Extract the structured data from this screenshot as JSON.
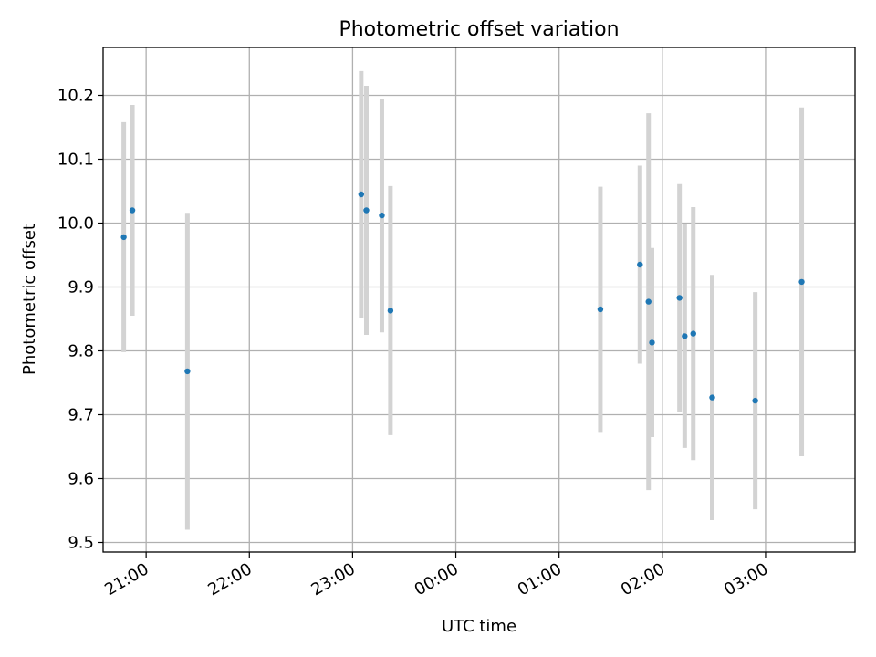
{
  "chart_data": {
    "type": "scatter",
    "title": "Photometric offset variation",
    "xlabel": "UTC time",
    "ylabel": "Photometric offset",
    "grid": true,
    "x_tick_labels": [
      "21:00",
      "22:00",
      "23:00",
      "00:00",
      "01:00",
      "02:00",
      "03:00"
    ],
    "y_tick_labels": [
      "9.5",
      "9.6",
      "9.7",
      "9.8",
      "9.9",
      "10.0",
      "10.1",
      "10.2"
    ],
    "x_range": [
      "20:35",
      "03:52"
    ],
    "ylim": [
      9.485,
      10.275
    ],
    "colors": {
      "points": "#1f77b4",
      "errorbars": "#d3d3d3",
      "grid": "#b0b0b0"
    },
    "points": [
      {
        "x": "20:47",
        "y": 9.978,
        "yerr": 0.18
      },
      {
        "x": "20:52",
        "y": 10.02,
        "yerr": 0.165
      },
      {
        "x": "21:24",
        "y": 9.768,
        "yerr": 0.248
      },
      {
        "x": "23:05",
        "y": 10.045,
        "yerr": 0.193
      },
      {
        "x": "23:08",
        "y": 10.02,
        "yerr": 0.195
      },
      {
        "x": "23:17",
        "y": 10.012,
        "yerr": 0.183
      },
      {
        "x": "23:22",
        "y": 9.863,
        "yerr": 0.195
      },
      {
        "x": "01:24",
        "y": 9.865,
        "yerr": 0.192
      },
      {
        "x": "01:47",
        "y": 9.935,
        "yerr": 0.155
      },
      {
        "x": "01:52",
        "y": 9.877,
        "yerr": 0.295
      },
      {
        "x": "01:54",
        "y": 9.813,
        "yerr": 0.148
      },
      {
        "x": "02:10",
        "y": 9.883,
        "yerr": 0.178
      },
      {
        "x": "02:13",
        "y": 9.823,
        "yerr": 0.175
      },
      {
        "x": "02:18",
        "y": 9.827,
        "yerr": 0.198
      },
      {
        "x": "02:29",
        "y": 9.727,
        "yerr": 0.192
      },
      {
        "x": "02:54",
        "y": 9.722,
        "yerr": 0.17
      },
      {
        "x": "03:21",
        "y": 9.908,
        "yerr": 0.273
      }
    ]
  }
}
